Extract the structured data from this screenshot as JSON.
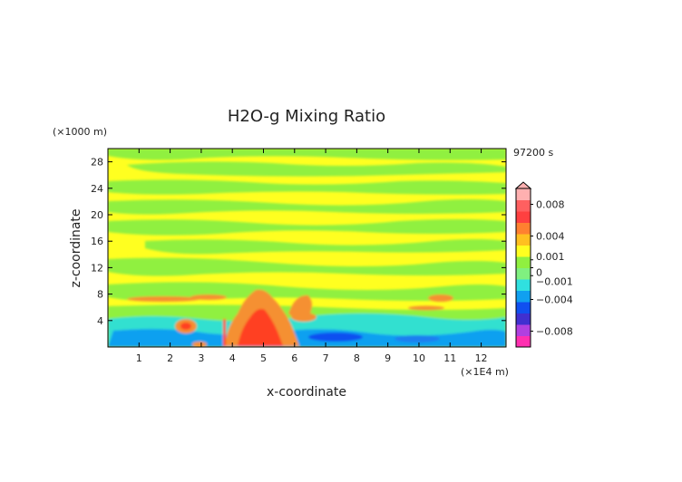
{
  "chart_data": {
    "type": "heatmap",
    "title": "H2O-g Mixing Ratio",
    "time_label": "97200 s",
    "xlabel": "x-coordinate",
    "ylabel": "z-coordinate",
    "x_unit": "(×1E4 m)",
    "y_unit": "(×1000 m)",
    "xlim": [
      0,
      12.8
    ],
    "ylim": [
      0,
      30
    ],
    "x_ticks": [
      "1",
      "2",
      "3",
      "4",
      "5",
      "6",
      "7",
      "8",
      "9",
      "10",
      "11",
      "12"
    ],
    "y_ticks": [
      "4",
      "8",
      "12",
      "16",
      "20",
      "24",
      "28"
    ],
    "colorbar": {
      "range": [
        -0.01,
        0.01
      ],
      "labels": [
        "0.008",
        "0.004",
        "0.001",
        "0",
        "−0.001",
        "−0.004",
        "−0.008"
      ],
      "colors": [
        "#ff2fb0",
        "#b040e0",
        "#4030d0",
        "#1050f0",
        "#10a0f0",
        "#30e0e0",
        "#80f080",
        "#90f040",
        "#ffff20",
        "#ffc020",
        "#ff8030",
        "#ff4040",
        "#ff6060",
        "#ffb0b0"
      ]
    },
    "colors": {
      "yellow": "#ffff20",
      "green": "#90f040",
      "orange": "#f59030",
      "red": "#ff4020",
      "cyan": "#30e0d0",
      "blue": "#1a7ff0"
    }
  }
}
